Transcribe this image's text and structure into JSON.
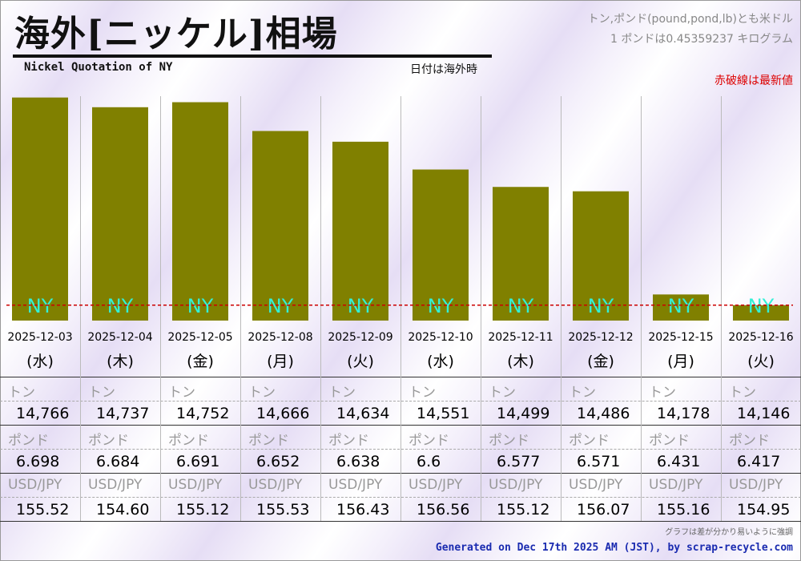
{
  "header": {
    "title": "海外[ニッケル]相場",
    "subtitle": "Nickel Quotation of NY",
    "date_note": "日付は海外時",
    "unit_note_1": "トン,ポンド(pound,pond,lb)とも米ドル",
    "unit_note_2": "1 ポンドは0.45359237 キログラム",
    "red_line_note": "赤破線は最新値"
  },
  "colors": {
    "bar": "#808000",
    "bar_label": "#33f0d6",
    "latest_line": "#cc0000"
  },
  "chart_data": {
    "type": "bar",
    "title": "Nickel Quotation of NY",
    "categories": [
      "2025-12-03",
      "2025-12-04",
      "2025-12-05",
      "2025-12-08",
      "2025-12-09",
      "2025-12-10",
      "2025-12-11",
      "2025-12-12",
      "2025-12-15",
      "2025-12-16"
    ],
    "weekdays": [
      "(水)",
      "(木)",
      "(金)",
      "(月)",
      "(火)",
      "(水)",
      "(木)",
      "(金)",
      "(月)",
      "(火)"
    ],
    "bar_label": "NY",
    "values": [
      14766,
      14737,
      14752,
      14666,
      14634,
      14551,
      14499,
      14486,
      14178,
      14146
    ],
    "latest_value": 14146,
    "ylim": [
      14100,
      14770
    ]
  },
  "table": {
    "ton_label": "トン",
    "pound_label": "ポンド",
    "usdjpy_label": "USD/JPY",
    "ton": [
      "14,766",
      "14,737",
      "14,752",
      "14,666",
      "14,634",
      "14,551",
      "14,499",
      "14,486",
      "14,178",
      "14,146"
    ],
    "pound": [
      "6.698",
      "6.684",
      "6.691",
      "6.652",
      "6.638",
      "6.6",
      "6.577",
      "6.571",
      "6.431",
      "6.417"
    ],
    "usdjpy": [
      "155.52",
      "154.60",
      "155.12",
      "155.53",
      "156.43",
      "156.56",
      "155.12",
      "156.07",
      "155.16",
      "154.95"
    ]
  },
  "footer": {
    "note": "グラフは差が分かり易いように強調",
    "generated": "Generated on Dec 17th 2025 AM (JST), by scrap-recycle.com"
  }
}
